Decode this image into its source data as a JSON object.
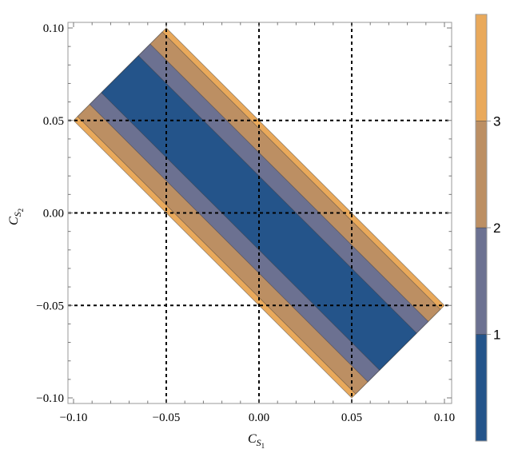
{
  "chart_data": {
    "type": "heatmap",
    "subtype": "contour",
    "title": "",
    "xlabel": "C",
    "xlabel_sub": "S",
    "xlabel_subsub": "1",
    "ylabel": "C",
    "ylabel_sub": "S",
    "ylabel_subsub": "2",
    "xlim": [
      -0.1,
      0.1
    ],
    "ylim": [
      -0.1,
      0.1
    ],
    "xticks": [
      "-0.10",
      "-0.05",
      "0.00",
      "0.05",
      "0.10"
    ],
    "yticks": [
      "-0.10",
      "-0.05",
      "0.00",
      "0.05",
      "0.10"
    ],
    "xtick_values": [
      -0.1,
      -0.05,
      0.0,
      0.05,
      0.1
    ],
    "ytick_values": [
      -0.1,
      -0.05,
      0.0,
      0.05,
      0.1
    ],
    "grid": {
      "on": true,
      "style": "dashed",
      "values": [
        -0.05,
        0.0,
        0.05
      ]
    },
    "domain": {
      "abs_x_plus_y_max": 0.05,
      "abs_x_minus_y_max": 0.15
    },
    "contour_levels": [
      {
        "range": [
          0,
          1
        ],
        "abs_x_plus_y_max": 0.02,
        "color": "#24548a"
      },
      {
        "range": [
          1,
          2
        ],
        "abs_x_plus_y_max": 0.0326,
        "color": "#6c7191"
      },
      {
        "range": [
          2,
          3
        ],
        "abs_x_plus_y_max": 0.0457,
        "color": "#bc8f63"
      },
      {
        "range": [
          3,
          4
        ],
        "abs_x_plus_y_max": 0.05,
        "color": "#e9a95b"
      }
    ],
    "colorbar": {
      "range": [
        0,
        4
      ],
      "ticks": [
        "1",
        "2",
        "3"
      ],
      "tick_values": [
        1,
        2,
        3
      ],
      "placement": "right"
    }
  }
}
